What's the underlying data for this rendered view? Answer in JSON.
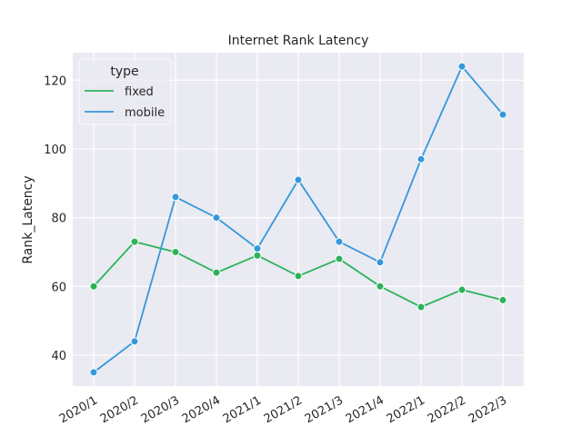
{
  "chart_data": {
    "type": "line",
    "title": "Internet Rank Latency",
    "xlabel": "",
    "ylabel": "Rank_Latency",
    "categories": [
      "2020/1",
      "2020/2",
      "2020/3",
      "2020/4",
      "2021/1",
      "2021/2",
      "2021/3",
      "2021/4",
      "2022/1",
      "2022/2",
      "2022/3"
    ],
    "ylim": [
      31,
      128
    ],
    "yticks": [
      40,
      60,
      80,
      100,
      120
    ],
    "grid": true,
    "legend": {
      "title": "type",
      "placement": "top-left"
    },
    "series": [
      {
        "name": "fixed",
        "color": "#2bb35a",
        "values": [
          60,
          73,
          70,
          64,
          69,
          63,
          68,
          60,
          54,
          59,
          56
        ]
      },
      {
        "name": "mobile",
        "color": "#3498db",
        "values": [
          35,
          44,
          86,
          80,
          71,
          91,
          73,
          67,
          97,
          124,
          110
        ]
      }
    ]
  }
}
